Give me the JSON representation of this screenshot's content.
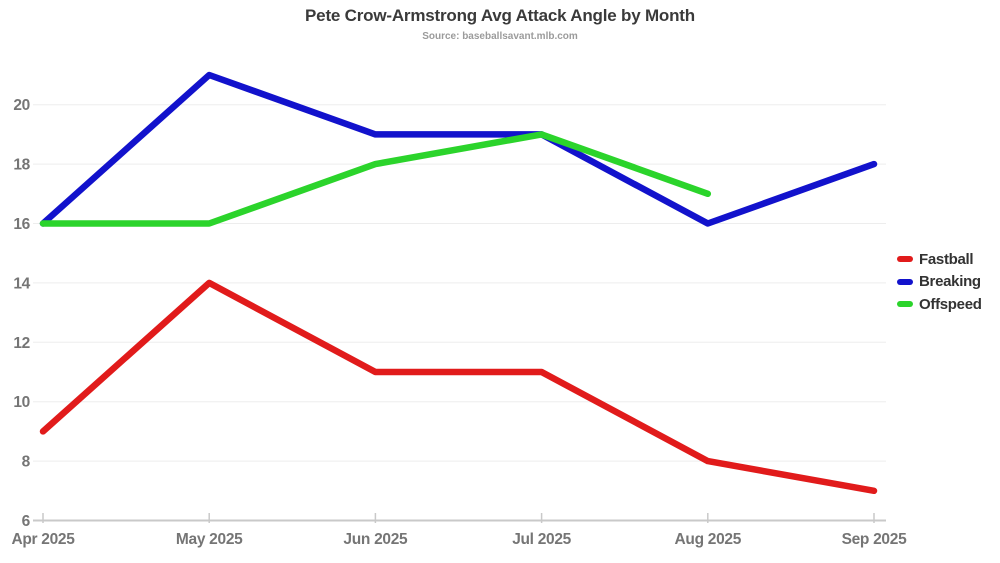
{
  "page": {
    "background": "#ffffff"
  },
  "chart_data": {
    "type": "line",
    "title": "Pete Crow-Armstrong Avg Attack Angle by Month",
    "subtitle": "Source: baseballsavant.mlb.com",
    "categories": [
      "Apr 2025",
      "May 2025",
      "Jun 2025",
      "Jul 2025",
      "Aug 2025",
      "Sep 2025"
    ],
    "series": [
      {
        "name": "Fastball",
        "color": "#e11b1b",
        "values": [
          9,
          14,
          11,
          11,
          8,
          7
        ]
      },
      {
        "name": "Breaking",
        "color": "#1212cc",
        "values": [
          16,
          21,
          19,
          19,
          16,
          18
        ]
      },
      {
        "name": "Offspeed",
        "color": "#2bd42b",
        "values": [
          16,
          16,
          18,
          19,
          17,
          null
        ]
      }
    ],
    "yticks": [
      6,
      8,
      10,
      12,
      14,
      16,
      18,
      20
    ],
    "ylim": [
      6,
      21.5
    ],
    "grid": true,
    "legend_position": "right",
    "axis_color": "#c9c9c9",
    "gridline_color": "#ededed",
    "tick_label_color": "#757575",
    "title_color": "#3a3a3a",
    "subtitle_color": "#9b9b9b",
    "legend_text_color": "#333333"
  }
}
